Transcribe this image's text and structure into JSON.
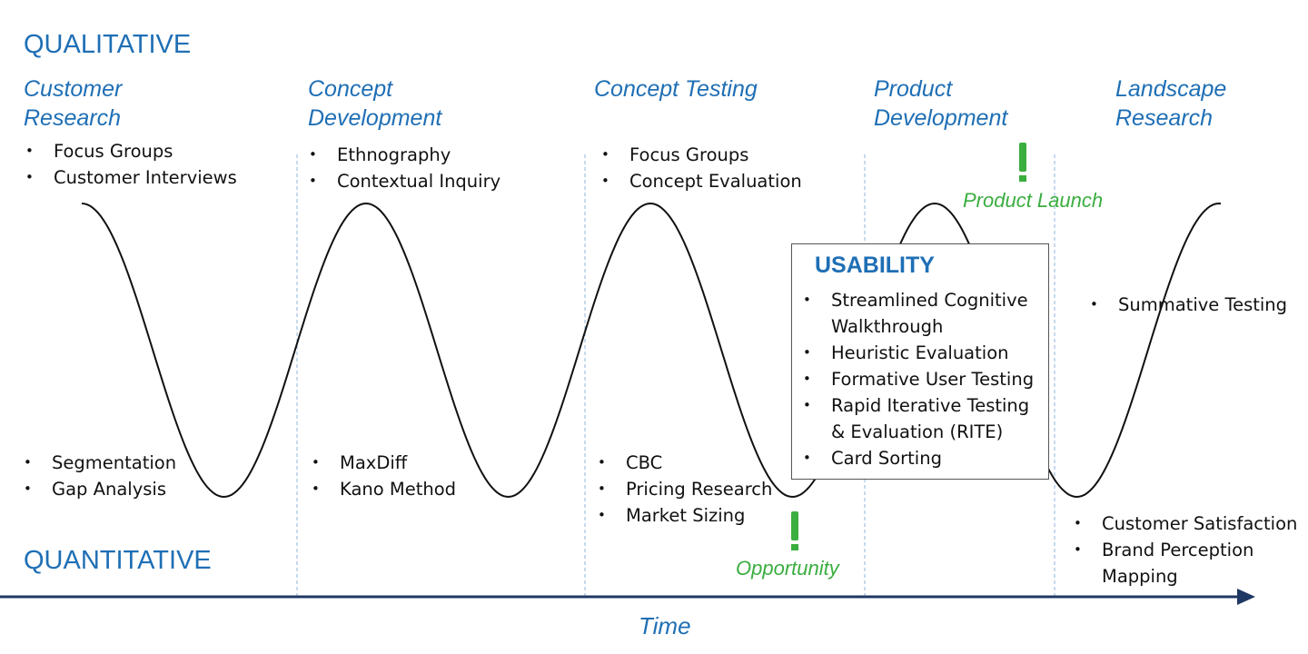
{
  "header": {
    "top": "QUALITATIVE",
    "bottom": "QUANTITATIVE",
    "axis": "Time"
  },
  "phases": [
    {
      "title": "Customer Research",
      "qualitative": [
        "Focus Groups",
        "Customer Interviews"
      ],
      "quantitative": [
        "Segmentation",
        "Gap Analysis"
      ]
    },
    {
      "title": "Concept Development",
      "qualitative": [
        "Ethnography",
        "Contextual Inquiry"
      ],
      "quantitative": [
        "MaxDiff",
        "Kano Method"
      ]
    },
    {
      "title": "Concept Testing",
      "qualitative": [
        "Focus Groups",
        "Concept Evaluation"
      ],
      "quantitative": [
        "CBC",
        "Pricing Research",
        "Market Sizing"
      ]
    },
    {
      "title": "Product Development",
      "qualitative": [],
      "quantitative": []
    },
    {
      "title": "Landscape Research",
      "qualitative": [
        "Summative Testing"
      ],
      "quantitative": [
        "Customer Satisfaction",
        "Brand Perception Mapping"
      ]
    }
  ],
  "usability": {
    "title": "USABILITY",
    "items": [
      "Streamlined Cognitive Walkthrough",
      "Heuristic Evaluation",
      "Formative User Testing",
      "Rapid Iterative Testing & Evaluation (RITE)",
      "Card Sorting"
    ]
  },
  "markers": [
    {
      "label": "Opportunity"
    },
    {
      "label": "Product Launch"
    }
  ]
}
